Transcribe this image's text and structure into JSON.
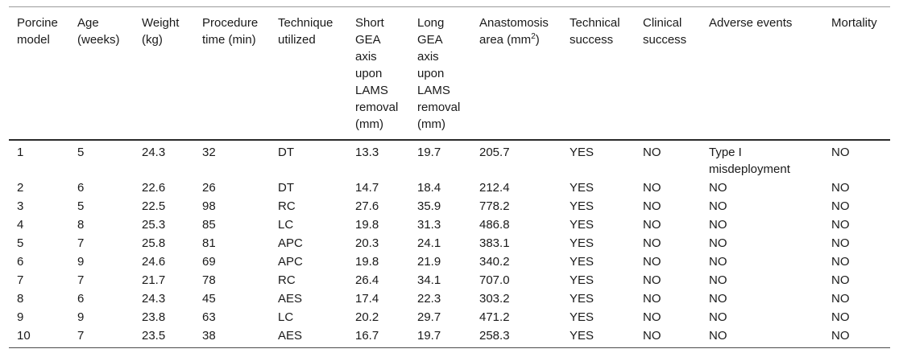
{
  "table": {
    "headers": [
      {
        "text": "Porcine model"
      },
      {
        "text": "Age (weeks)"
      },
      {
        "text": "Weight (kg)"
      },
      {
        "text": "Procedure time (min)"
      },
      {
        "text": "Technique utilized"
      },
      {
        "text": "Short GEA axis upon LAMS removal (mm)"
      },
      {
        "text": "Long GEA axis upon LAMS removal (mm)"
      },
      {
        "text": "Anastomosis area (mm",
        "sup": "2",
        "after": ")"
      },
      {
        "text": "Technical success"
      },
      {
        "text": "Clinical success"
      },
      {
        "text": "Adverse events"
      },
      {
        "text": "Mortality"
      }
    ],
    "rows": [
      [
        "1",
        "5",
        "24.3",
        "32",
        "DT",
        "13.3",
        "19.7",
        "205.7",
        "YES",
        "NO",
        "Type I misdeployment",
        "NO"
      ],
      [
        "2",
        "6",
        "22.6",
        "26",
        "DT",
        "14.7",
        "18.4",
        "212.4",
        "YES",
        "NO",
        "NO",
        "NO"
      ],
      [
        "3",
        "5",
        "22.5",
        "98",
        "RC",
        "27.6",
        "35.9",
        "778.2",
        "YES",
        "NO",
        "NO",
        "NO"
      ],
      [
        "4",
        "8",
        "25.3",
        "85",
        "LC",
        "19.8",
        "31.3",
        "486.8",
        "YES",
        "NO",
        "NO",
        "NO"
      ],
      [
        "5",
        "7",
        "25.8",
        "81",
        "APC",
        "20.3",
        "24.1",
        "383.1",
        "YES",
        "NO",
        "NO",
        "NO"
      ],
      [
        "6",
        "9",
        "24.6",
        "69",
        "APC",
        "19.8",
        "21.9",
        "340.2",
        "YES",
        "NO",
        "NO",
        "NO"
      ],
      [
        "7",
        "7",
        "21.7",
        "78",
        "RC",
        "26.4",
        "34.1",
        "707.0",
        "YES",
        "NO",
        "NO",
        "NO"
      ],
      [
        "8",
        "6",
        "24.3",
        "45",
        "AES",
        "17.4",
        "22.3",
        "303.2",
        "YES",
        "NO",
        "NO",
        "NO"
      ],
      [
        "9",
        "9",
        "23.8",
        "63",
        "LC",
        "20.2",
        "29.7",
        "471.2",
        "YES",
        "NO",
        "NO",
        "NO"
      ],
      [
        "10",
        "7",
        "23.5",
        "38",
        "AES",
        "16.7",
        "19.7",
        "258.3",
        "YES",
        "NO",
        "NO",
        "NO"
      ]
    ]
  }
}
